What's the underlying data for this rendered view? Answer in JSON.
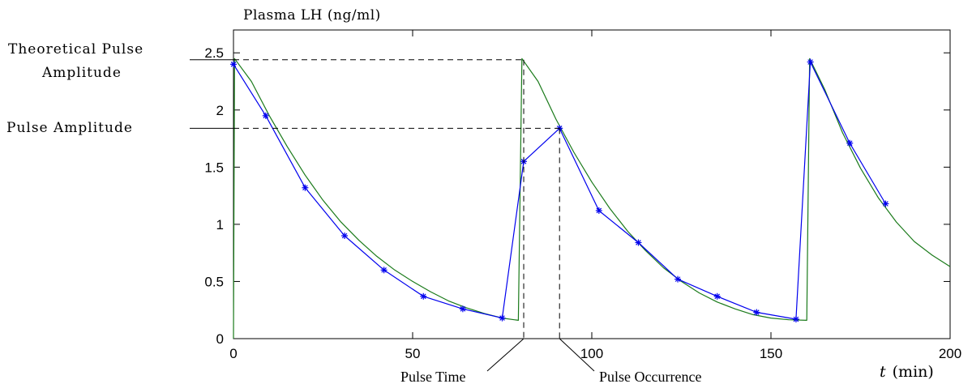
{
  "chart_data": {
    "type": "line",
    "ylabel": "Plasma LH (ng/ml)",
    "xlabel_var": "t",
    "xlabel_unit": "(min)",
    "xlim": [
      0,
      200
    ],
    "ylim": [
      0,
      2.7
    ],
    "x_ticks": [
      0,
      50,
      100,
      150,
      200
    ],
    "y_ticks": [
      0,
      0.5,
      1,
      1.5,
      2,
      2.5
    ],
    "x_tick_labels": [
      "0",
      "50",
      "100",
      "150",
      "200"
    ],
    "y_tick_labels": [
      "0",
      "0.5",
      "1",
      "1.5",
      "2",
      "2.5"
    ],
    "grid": false,
    "legend": "none",
    "series": [
      {
        "color": "#1a7a1a",
        "points": [
          [
            0,
            0
          ],
          [
            0.3,
            2.45
          ],
          [
            5,
            2.25
          ],
          [
            10,
            1.95
          ],
          [
            15,
            1.68
          ],
          [
            20,
            1.43
          ],
          [
            25,
            1.21
          ],
          [
            30,
            1.02
          ],
          [
            35,
            0.86
          ],
          [
            40,
            0.72
          ],
          [
            45,
            0.6
          ],
          [
            50,
            0.5
          ],
          [
            55,
            0.41
          ],
          [
            60,
            0.33
          ],
          [
            65,
            0.27
          ],
          [
            70,
            0.22
          ],
          [
            75,
            0.18
          ],
          [
            79.5,
            0.16
          ],
          [
            80.5,
            2.45
          ],
          [
            85,
            2.25
          ],
          [
            90,
            1.92
          ],
          [
            95,
            1.63
          ],
          [
            100,
            1.37
          ],
          [
            105,
            1.14
          ],
          [
            110,
            0.94
          ],
          [
            115,
            0.77
          ],
          [
            120,
            0.62
          ],
          [
            125,
            0.5
          ],
          [
            130,
            0.4
          ],
          [
            135,
            0.32
          ],
          [
            140,
            0.26
          ],
          [
            145,
            0.21
          ],
          [
            150,
            0.18
          ],
          [
            155,
            0.165
          ],
          [
            160,
            0.16
          ],
          [
            160.8,
            2.45
          ],
          [
            165,
            2.18
          ],
          [
            170,
            1.8
          ],
          [
            175,
            1.49
          ],
          [
            180,
            1.23
          ],
          [
            185,
            1.02
          ],
          [
            190,
            0.85
          ],
          [
            195,
            0.73
          ],
          [
            200,
            0.63
          ]
        ]
      },
      {
        "color": "#0000ee",
        "marker": "asterisk",
        "points": [
          [
            0,
            2.4
          ],
          [
            9,
            1.95
          ],
          [
            20,
            1.32
          ],
          [
            31,
            0.9
          ],
          [
            42,
            0.6
          ],
          [
            53,
            0.37
          ],
          [
            64,
            0.26
          ],
          [
            75,
            0.18
          ],
          [
            81,
            1.55
          ],
          [
            91,
            1.84
          ],
          [
            102,
            1.12
          ],
          [
            113,
            0.84
          ],
          [
            124,
            0.52
          ],
          [
            135,
            0.37
          ],
          [
            146,
            0.23
          ],
          [
            157,
            0.17
          ],
          [
            161,
            2.42
          ],
          [
            172,
            1.71
          ],
          [
            182,
            1.18
          ]
        ]
      }
    ],
    "annotations": {
      "theoretical_pulse_amplitude_line1": "Theoretical Pulse",
      "theoretical_pulse_amplitude_line2": "Amplitude",
      "theoretical_pulse_amplitude_value": 2.44,
      "pulse_amplitude": "Pulse Amplitude",
      "pulse_amplitude_value": 1.84,
      "pulse_time": "Pulse Time",
      "pulse_time_x": 81,
      "pulse_occurrence": "Pulse Occurrence",
      "pulse_occurrence_x": 91
    }
  }
}
